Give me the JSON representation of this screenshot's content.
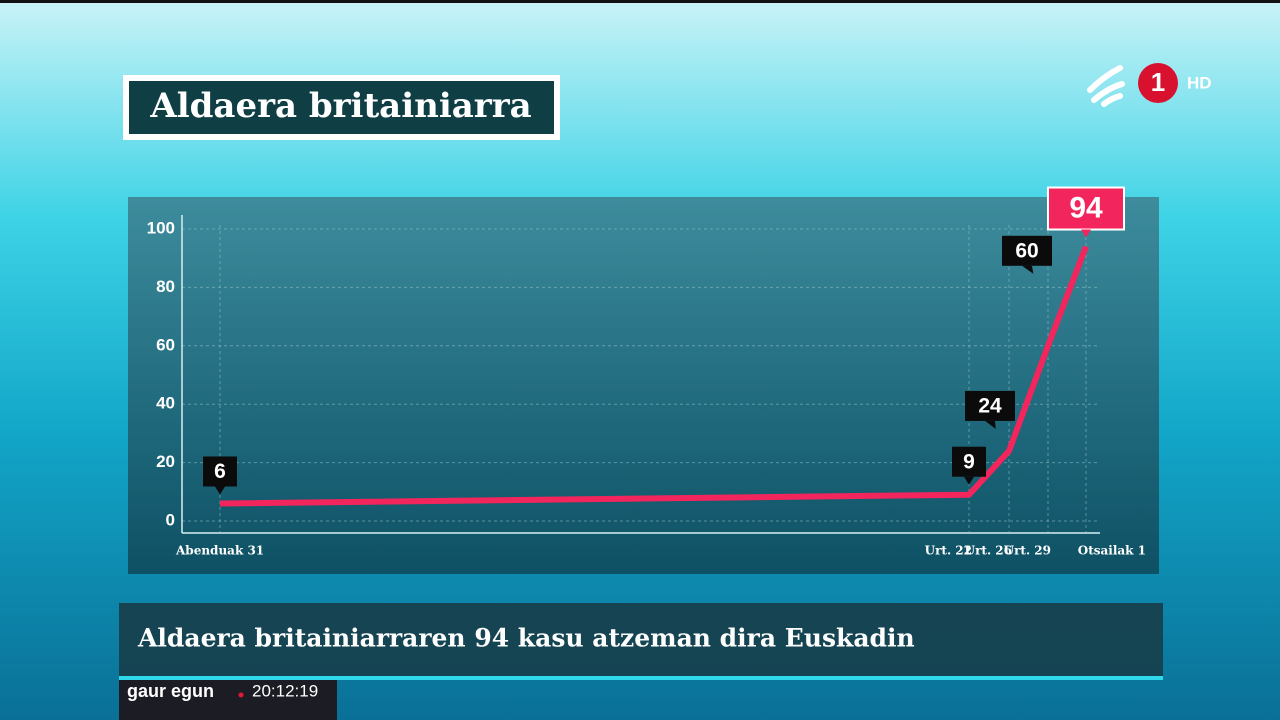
{
  "header": {
    "title": "Aldaera britainiarra",
    "channel": "1",
    "quality": "HD"
  },
  "chart_data": {
    "type": "line",
    "categories": [
      "Abenduak 31",
      "Urt. 22",
      "Urt. 26",
      "Urt. 29",
      "Otsailak 1"
    ],
    "series": [
      {
        "name": "Aldaera britainiarra",
        "color": "#f2255c",
        "values": [
          6,
          9,
          24,
          60,
          94
        ]
      }
    ],
    "ylim": [
      0,
      100
    ],
    "yticks": [
      0,
      20,
      40,
      60,
      80,
      100
    ],
    "grid": true
  },
  "caption": {
    "headline": "Aldaera britainiarraren 94 kasu atzeman dira Euskadin",
    "program": "gaur egun",
    "time": "20:12:19"
  }
}
